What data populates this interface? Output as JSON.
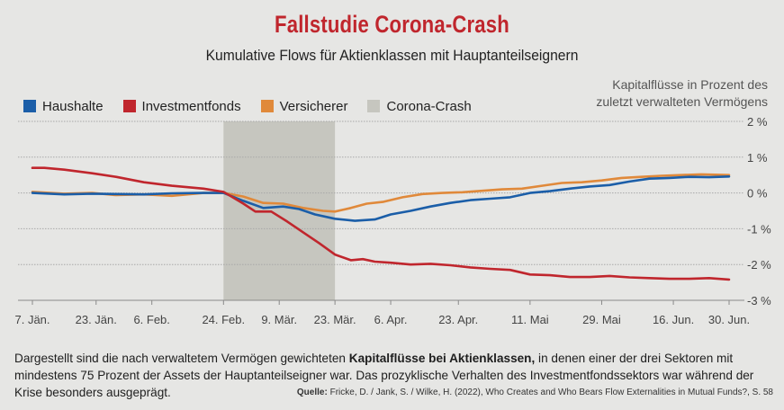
{
  "header": {
    "title": "Fallstudie Corona-Crash",
    "subtitle": "Kumulative Flows für Aktienklassen mit Hauptanteilseignern",
    "axis_note_line1": "Kapitalflüsse in Prozent des",
    "axis_note_line2": "zuletzt verwalteten Vermögens"
  },
  "legend": [
    {
      "label": "Haushalte",
      "color": "#1b5ea8"
    },
    {
      "label": "Investmentfonds",
      "color": "#c0262d"
    },
    {
      "label": "Versicherer",
      "color": "#e0893a"
    },
    {
      "label": "Corona-Crash",
      "color": "#c6c6bf"
    }
  ],
  "footer": {
    "text_before": "Dargestellt sind die nach verwaltetem Vermögen gewichteten ",
    "text_bold": "Kapitalflüsse bei Aktienklassen,",
    "text_after": " in denen einer der drei Sektoren mit mindestens 75 Prozent der Assets der Hauptanteilseigner war. Das prozyklische Verhalten des Investmentfondssektors war während der Krise besonders ausgeprägt.",
    "source_label": "Quelle:",
    "source_text": " Fricke, D. / Jank, S. / Wilke, H. (2022), Who Creates and Who Bears Flow Externalities in Mutual Funds?, S. 58"
  },
  "chart_data": {
    "type": "line",
    "x_unit": "day of year 2020",
    "xlim": [
      7,
      182
    ],
    "ylim": [
      -3,
      2
    ],
    "y_ticks": [
      2,
      1,
      0,
      -1,
      -2,
      -3
    ],
    "y_tick_labels": [
      "2 %",
      "1 %",
      "0 %",
      "-1 %",
      "-2 %",
      "-3 %"
    ],
    "x_ticks": [
      7,
      23,
      37,
      55,
      69,
      83,
      97,
      114,
      132,
      150,
      168,
      182
    ],
    "x_tick_labels": [
      "7. Jän.",
      "23. Jän.",
      "6. Feb.",
      "24. Feb.",
      "9. Mär.",
      "23. Mär.",
      "6. Apr.",
      "23. Apr.",
      "11. Mai",
      "29. Mai",
      "16. Jun.",
      "30. Jun."
    ],
    "shaded_region": {
      "label": "Corona-Crash",
      "x": [
        55,
        83
      ]
    },
    "grid": "horizontal",
    "series": [
      {
        "name": "Haushalte",
        "color": "#1b5ea8",
        "x": [
          7,
          15,
          22,
          28,
          35,
          42,
          50,
          55,
          60,
          65,
          70,
          74,
          78,
          83,
          88,
          93,
          97,
          102,
          107,
          112,
          117,
          122,
          127,
          132,
          137,
          142,
          147,
          152,
          157,
          162,
          167,
          172,
          177,
          182
        ],
        "y": [
          0.0,
          -0.04,
          -0.02,
          -0.03,
          -0.04,
          -0.01,
          0.0,
          0.0,
          -0.22,
          -0.42,
          -0.38,
          -0.45,
          -0.6,
          -0.72,
          -0.78,
          -0.74,
          -0.6,
          -0.5,
          -0.38,
          -0.28,
          -0.2,
          -0.16,
          -0.12,
          0.0,
          0.05,
          0.12,
          0.18,
          0.22,
          0.32,
          0.4,
          0.42,
          0.45,
          0.44,
          0.46
        ]
      },
      {
        "name": "Investmentfonds",
        "color": "#c0262d",
        "x": [
          7,
          10,
          15,
          22,
          28,
          35,
          42,
          50,
          55,
          60,
          63,
          67,
          71,
          75,
          79,
          83,
          87,
          90,
          93,
          97,
          102,
          107,
          112,
          117,
          122,
          127,
          132,
          137,
          142,
          147,
          152,
          157,
          162,
          167,
          172,
          177,
          182
        ],
        "y": [
          0.7,
          0.7,
          0.65,
          0.55,
          0.45,
          0.3,
          0.2,
          0.12,
          0.03,
          -0.3,
          -0.52,
          -0.52,
          -0.8,
          -1.1,
          -1.4,
          -1.72,
          -1.88,
          -1.85,
          -1.92,
          -1.95,
          -2.0,
          -1.98,
          -2.02,
          -2.08,
          -2.12,
          -2.15,
          -2.28,
          -2.3,
          -2.35,
          -2.35,
          -2.32,
          -2.36,
          -2.38,
          -2.4,
          -2.4,
          -2.38,
          -2.42
        ]
      },
      {
        "name": "Versicherer",
        "color": "#e0893a",
        "x": [
          7,
          15,
          22,
          28,
          35,
          42,
          50,
          55,
          60,
          65,
          70,
          75,
          80,
          83,
          87,
          91,
          95,
          100,
          105,
          110,
          115,
          120,
          125,
          130,
          135,
          140,
          145,
          150,
          155,
          160,
          165,
          170,
          175,
          182
        ],
        "y": [
          0.03,
          -0.02,
          0.0,
          -0.06,
          -0.04,
          -0.08,
          0.0,
          0.0,
          -0.1,
          -0.28,
          -0.3,
          -0.42,
          -0.5,
          -0.52,
          -0.42,
          -0.3,
          -0.25,
          -0.12,
          -0.03,
          0.0,
          0.02,
          0.06,
          0.1,
          0.12,
          0.2,
          0.28,
          0.3,
          0.35,
          0.42,
          0.45,
          0.48,
          0.5,
          0.52,
          0.5
        ]
      }
    ]
  }
}
